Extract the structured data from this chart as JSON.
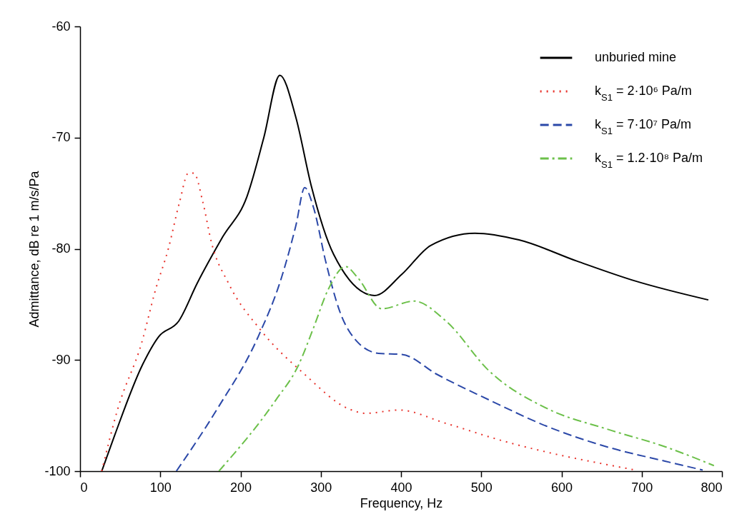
{
  "chart_data": {
    "type": "line",
    "xlabel": "Frequency, Hz",
    "ylabel": "Admittance, dB re 1 m/s/Pa",
    "xlim": [
      0,
      800
    ],
    "ylim": [
      -100,
      -60
    ],
    "xticks": [
      0,
      100,
      200,
      300,
      400,
      500,
      600,
      700,
      800
    ],
    "yticks": [
      -100,
      -90,
      -80,
      -70,
      -60
    ],
    "grid": false,
    "legend": "top right",
    "marker": "none",
    "series": [
      {
        "name": "unburied mine",
        "color": "#000000",
        "line_style": "solid",
        "x": [
          27,
          43,
          78,
          98,
          123,
          146,
          178,
          208,
          229,
          249,
          269,
          288,
          316,
          367,
          401,
          437,
          492,
          547,
          619,
          692,
          783
        ],
        "values": [
          -100,
          -96.8,
          -90.4,
          -87.9,
          -86.5,
          -83.1,
          -78.9,
          -75.3,
          -70.0,
          -64.4,
          -68.2,
          -74.3,
          -80.5,
          -84.2,
          -82.3,
          -79.7,
          -78.6,
          -79.2,
          -81.1,
          -82.9,
          -84.6
        ]
      },
      {
        "name": "k$_{S1}$ = 2·10⁶ Pa/m",
        "color": "#e8312a",
        "line_style": "dotted",
        "x": [
          27,
          47,
          77,
          94,
          110,
          124,
          135,
          142,
          153,
          164,
          185,
          225,
          280,
          335,
          356,
          397,
          456,
          528,
          601,
          656,
          692
        ],
        "values": [
          -100,
          -94.4,
          -88.4,
          -83.7,
          -80.0,
          -75.8,
          -73.2,
          -73.2,
          -75.8,
          -79.5,
          -83.1,
          -87.3,
          -91.3,
          -94.4,
          -94.8,
          -94.5,
          -95.7,
          -97.3,
          -98.6,
          -99.4,
          -99.9
        ]
      },
      {
        "name": "k$_{S1}$ = 7·10⁷ Pa/m",
        "color": "#2b48a8",
        "line_style": "dashed",
        "x": [
          120,
          171,
          222,
          251,
          269,
          280,
          291,
          306,
          324,
          346,
          372,
          401,
          445,
          510,
          583,
          656,
          729,
          776
        ],
        "values": [
          -100,
          -94.4,
          -87.9,
          -82.6,
          -77.9,
          -74.5,
          -76.3,
          -81.1,
          -85.7,
          -88.4,
          -89.4,
          -89.5,
          -91.3,
          -93.6,
          -96.0,
          -97.8,
          -99.1,
          -99.9
        ]
      },
      {
        "name": "k$_{S1}$ = 1.2·10⁸ Pa/m",
        "color": "#6cc04a",
        "line_style": "dashdot",
        "x": [
          173,
          244,
          272,
          291,
          309,
          331,
          346,
          376,
          416,
          456,
          510,
          583,
          656,
          729,
          790
        ],
        "values": [
          -100,
          -93.6,
          -90.5,
          -87.1,
          -83.7,
          -81.6,
          -82.6,
          -85.4,
          -84.7,
          -86.5,
          -91.0,
          -94.4,
          -96.2,
          -97.8,
          -99.5
        ]
      }
    ]
  }
}
